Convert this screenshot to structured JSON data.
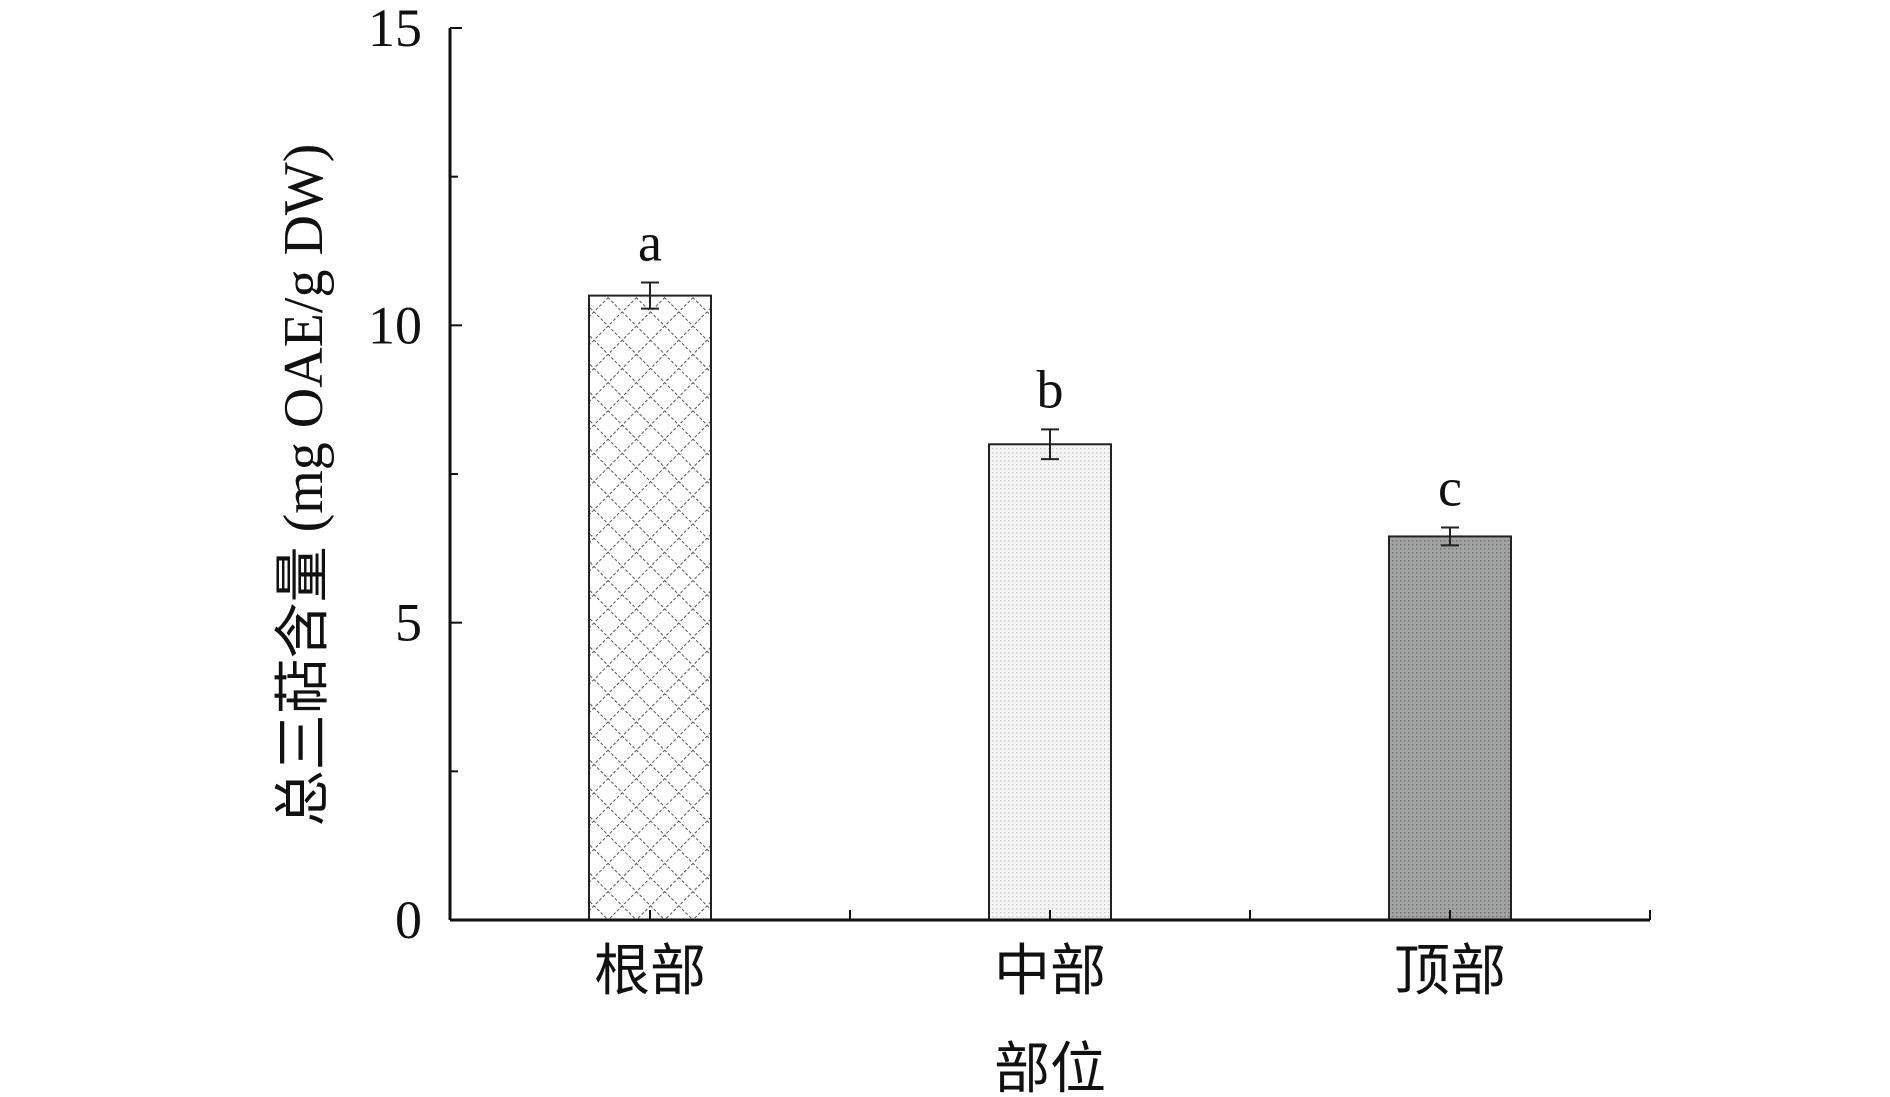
{
  "chart_data": {
    "type": "bar",
    "categories": [
      "根部",
      "中部",
      "顶部"
    ],
    "values": [
      10.5,
      8.0,
      6.45
    ],
    "errors": [
      0.22,
      0.25,
      0.15
    ],
    "significance_letters": [
      "a",
      "b",
      "c"
    ],
    "patterns": [
      "crosshatch",
      "light-dots",
      "dark-dots"
    ],
    "xlabel": "部位",
    "ylabel": "总三萜含量 (mg OAE/g DW)",
    "ylim": [
      0,
      15
    ],
    "yticks": [
      "0",
      "5",
      "10",
      "15"
    ],
    "grid": false,
    "legend": false
  },
  "colors": {
    "axis": "#111111",
    "bar_outline": "#222222",
    "bar1_fill": "#ffffff",
    "bar1_hatch": "#555555",
    "bar2_fill": "#f2f2f2",
    "bar3_fill": "#9a9c9c"
  }
}
